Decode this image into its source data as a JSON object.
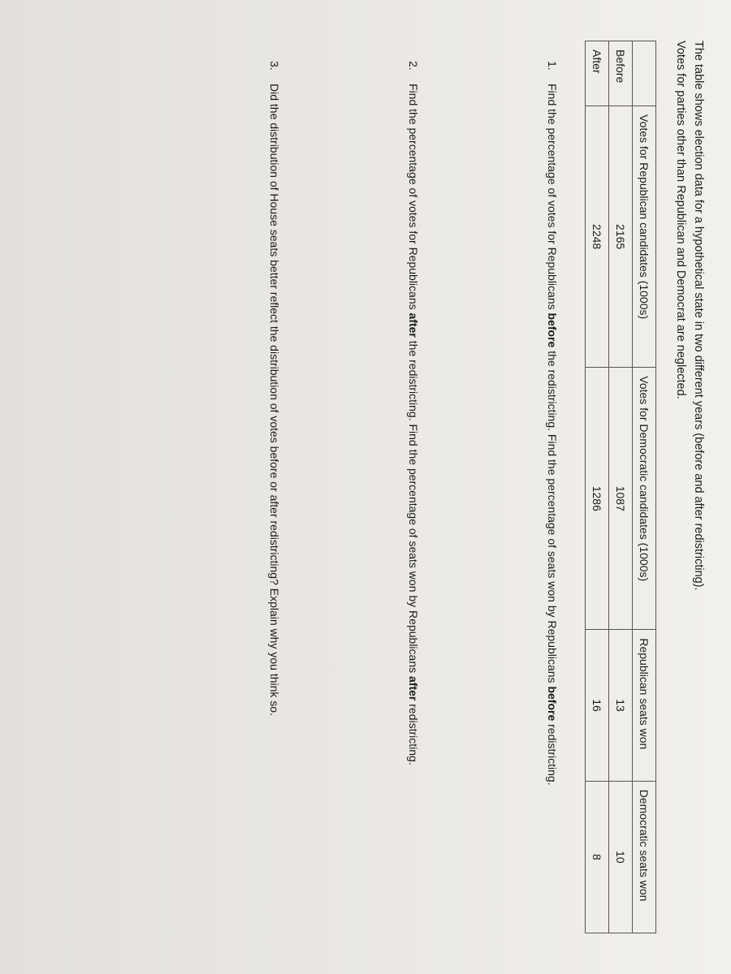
{
  "intro": {
    "line1": "The table shows election data for a hypothetical state in two different years (before and after  redistricting).",
    "line2": "Votes for parties other than Republican and Democrat are neglected."
  },
  "table": {
    "headers": {
      "blank": "",
      "col1": "Votes for Republican candidates (1000s)",
      "col2": "Votes for Democratic candidates (1000s)",
      "col3": "Republican seats won",
      "col4": "Democratic seats won"
    },
    "rows": [
      {
        "label": "Before",
        "rep_votes": "2165",
        "dem_votes": "1087",
        "rep_seats": "13",
        "dem_seats": "10"
      },
      {
        "label": "After",
        "rep_votes": "2248",
        "dem_votes": "1286",
        "rep_seats": "16",
        "dem_seats": "8"
      }
    ]
  },
  "questions": {
    "q1": {
      "num": "1.",
      "text_a": "Find the percentage of votes for Republicans ",
      "bold_a": "before",
      "text_b": " the redistricting. Find the percentage of seats won by Republicans ",
      "bold_b": "before",
      "text_c": " redistricting."
    },
    "q2": {
      "num": "2.",
      "text_a": "Find the percentage of votes for Republicans ",
      "bold_a": "after",
      "text_b": " the redistricting. Find the percentage of seats won by Republicans ",
      "bold_b": "after",
      "text_c": " redistricting."
    },
    "q3": {
      "num": "3.",
      "text": "Did the distribution of House seats better reflect the distribution of votes before or after redistricting? Explain why you think so."
    }
  }
}
